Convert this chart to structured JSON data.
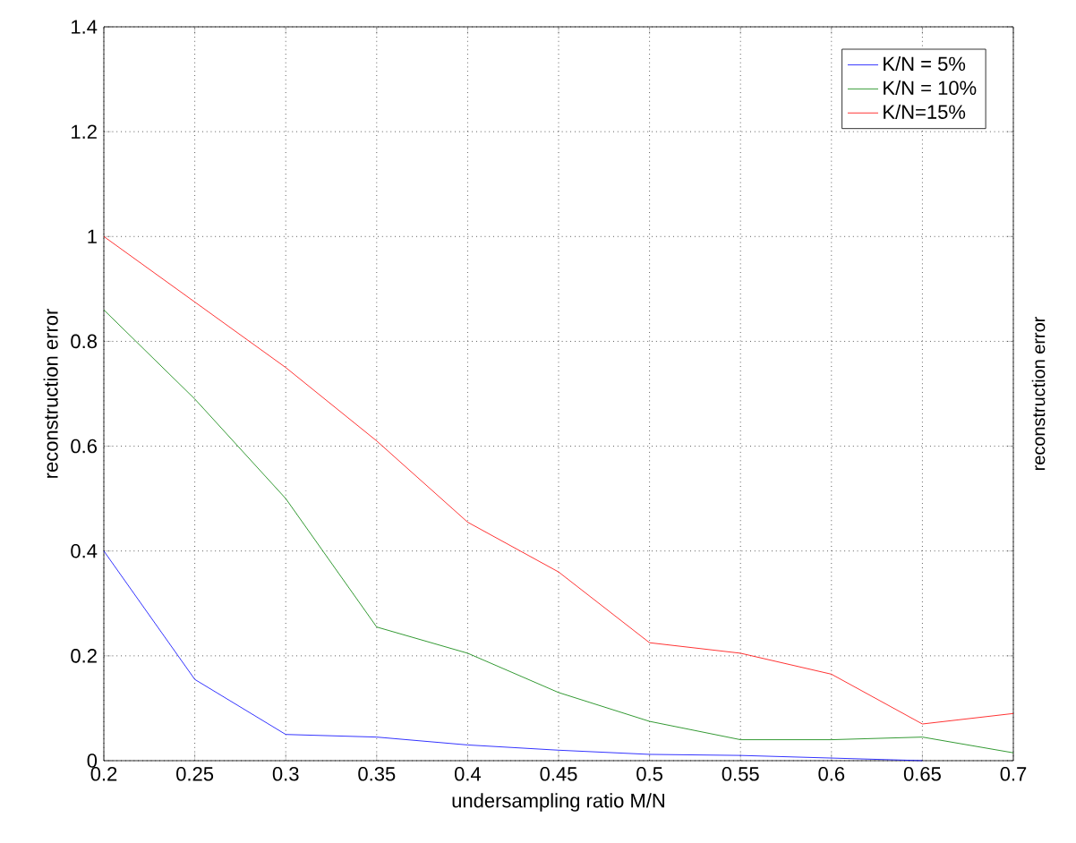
{
  "chart_data": {
    "type": "line",
    "xlabel": "undersampling ratio M/N",
    "ylabel": "reconstruction error",
    "y2label": "reconstruction error",
    "x": [
      0.2,
      0.25,
      0.3,
      0.35,
      0.4,
      0.45,
      0.5,
      0.55,
      0.6,
      0.65,
      0.7
    ],
    "series": [
      {
        "name": "K/N = 5%",
        "color": "#0000ff",
        "values": [
          0.4,
          0.155,
          0.05,
          0.045,
          0.03,
          0.02,
          0.012,
          0.01,
          0.005,
          0.0,
          null
        ]
      },
      {
        "name": "K/N = 10%",
        "color": "#008000",
        "values": [
          0.86,
          0.69,
          0.5,
          0.255,
          0.205,
          0.13,
          0.075,
          0.04,
          0.04,
          0.045,
          0.015
        ]
      },
      {
        "name": "K/N=15%",
        "color": "#ff0000",
        "values": [
          1.0,
          0.875,
          0.75,
          0.61,
          0.455,
          0.36,
          0.225,
          0.205,
          0.165,
          0.07,
          0.09
        ]
      }
    ],
    "xlim": [
      0.2,
      0.7
    ],
    "ylim": [
      0,
      1.4
    ],
    "xticks": [
      0.2,
      0.25,
      0.3,
      0.35,
      0.4,
      0.45,
      0.5,
      0.55,
      0.6,
      0.65,
      0.7
    ],
    "yticks": [
      0,
      0.2,
      0.4,
      0.6,
      0.8,
      1,
      1.2,
      1.4
    ],
    "grid": true,
    "legend": "top right",
    "marker": "none",
    "line_style": "solid"
  }
}
